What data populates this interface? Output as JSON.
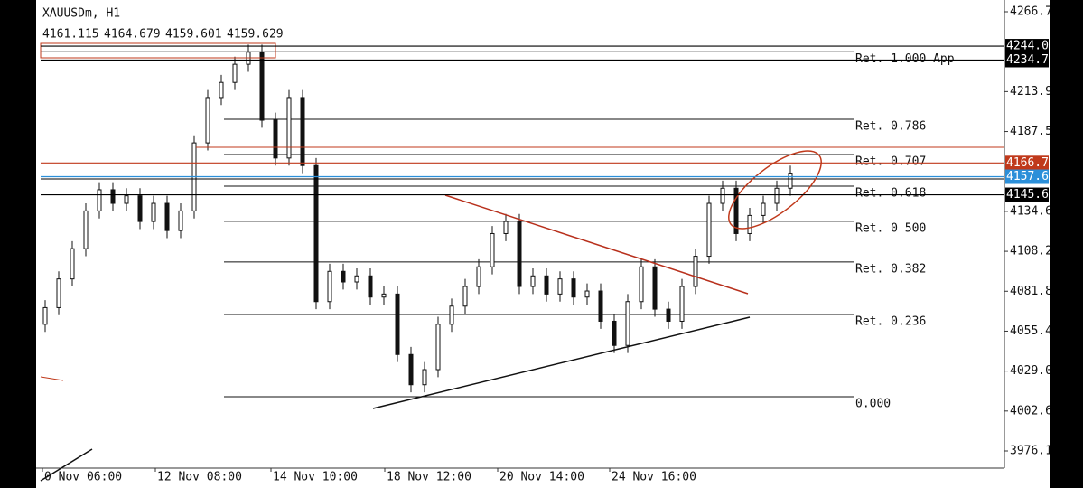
{
  "header": {
    "symbol": "XAUUSDm, H1",
    "ohlc": [
      4161.115,
      4164.679,
      4159.601,
      4159.629
    ]
  },
  "chart_data": {
    "type": "candlestick",
    "open": [
      4060,
      4071,
      4090,
      4110,
      4135,
      4149,
      4140,
      4145,
      4128,
      4140,
      4122,
      4135,
      4180,
      4210,
      4220,
      4232,
      4240,
      4195,
      4170,
      4210,
      4165,
      4075,
      4095,
      4088,
      4092,
      4078,
      4080,
      4040,
      4020,
      4030,
      4060,
      4072,
      4085,
      4098,
      4120,
      4128,
      4085,
      4092,
      4080,
      4090,
      4078,
      4082,
      4062,
      4046,
      4075,
      4098,
      4070,
      4062,
      4085,
      4105,
      4140,
      4150,
      4120,
      4132,
      4140,
      4150
    ],
    "high": [
      4076,
      4095,
      4115,
      4140,
      4154,
      4154,
      4150,
      4150,
      4145,
      4145,
      4140,
      4185,
      4215,
      4225,
      4237,
      4245,
      4245,
      4200,
      4215,
      4215,
      4170,
      4100,
      4100,
      4097,
      4097,
      4085,
      4085,
      4045,
      4035,
      4065,
      4077,
      4090,
      4103,
      4125,
      4133,
      4133,
      4097,
      4097,
      4095,
      4095,
      4087,
      4087,
      4067,
      4080,
      4103,
      4103,
      4075,
      4090,
      4110,
      4145,
      4155,
      4155,
      4137,
      4145,
      4155,
      4165
    ],
    "low": [
      4055,
      4066,
      4085,
      4105,
      4130,
      4135,
      4135,
      4123,
      4123,
      4117,
      4117,
      4130,
      4175,
      4205,
      4215,
      4227,
      4190,
      4165,
      4165,
      4160,
      4070,
      4070,
      4083,
      4083,
      4073,
      4073,
      4035,
      4015,
      4015,
      4025,
      4055,
      4067,
      4080,
      4093,
      4115,
      4080,
      4080,
      4075,
      4075,
      4073,
      4073,
      4057,
      4041,
      4041,
      4070,
      4065,
      4057,
      4057,
      4080,
      4100,
      4135,
      4115,
      4115,
      4127,
      4135,
      4145
    ],
    "close": [
      4071,
      4090,
      4110,
      4135,
      4149,
      4140,
      4145,
      4128,
      4140,
      4122,
      4135,
      4180,
      4210,
      4220,
      4232,
      4240,
      4195,
      4170,
      4210,
      4165,
      4075,
      4095,
      4088,
      4092,
      4078,
      4080,
      4040,
      4020,
      4030,
      4060,
      4072,
      4085,
      4098,
      4120,
      4128,
      4085,
      4092,
      4080,
      4090,
      4078,
      4082,
      4062,
      4046,
      4075,
      4098,
      4070,
      4062,
      4085,
      4105,
      4140,
      4150,
      4120,
      4132,
      4140,
      4150,
      4160
    ],
    "up_color": "#111111",
    "down_color": "#111111",
    "ylim": [
      3976.195,
      4266.76
    ],
    "yticks": [
      {
        "value": 4266.76,
        "label": "4266.760"
      },
      4213.93,
      4187.515,
      4134.685,
      {
        "value": 4108.27,
        "label": "4108.270"
      },
      4081.855,
      {
        "value": 4055.44,
        "label": "4055.440"
      },
      4029.025,
      {
        "value": 4002.61,
        "label": "4002.610"
      },
      3976.195
    ],
    "x_labels": [
      "0 Nov 06:00",
      "12 Nov 08:00",
      "14 Nov 10:00",
      "18 Nov 12:00",
      "20 Nov 14:00",
      "24 Nov 16:00"
    ],
    "price_lines": [
      {
        "value": 4244.009,
        "color": "#000000"
      },
      {
        "value": 4234.785,
        "color": "#000000"
      },
      {
        "value": 4166.733,
        "color": "#c0391b"
      },
      {
        "value": 4157.629,
        "color": "#2b8fd9"
      },
      {
        "value": 4145.666,
        "color": "#000000"
      }
    ],
    "fib_levels": [
      {
        "label": "Ret. 1.000 App",
        "price": 4240.3
      },
      {
        "label": "Ret. 0.786",
        "price": 4195.6
      },
      {
        "label": "Ret. 0.707",
        "price": 4172.3
      },
      {
        "label": "Ret. 0.618",
        "price": 4151.4
      },
      {
        "label": "Ret. 0 500",
        "price": 4128.1
      },
      {
        "label": "Ret. 0.382",
        "price": 4101.2
      },
      {
        "label": "Ret. 0.236",
        "price": 4066.5
      },
      {
        "label": "0.000",
        "price": 4012.1
      }
    ]
  }
}
